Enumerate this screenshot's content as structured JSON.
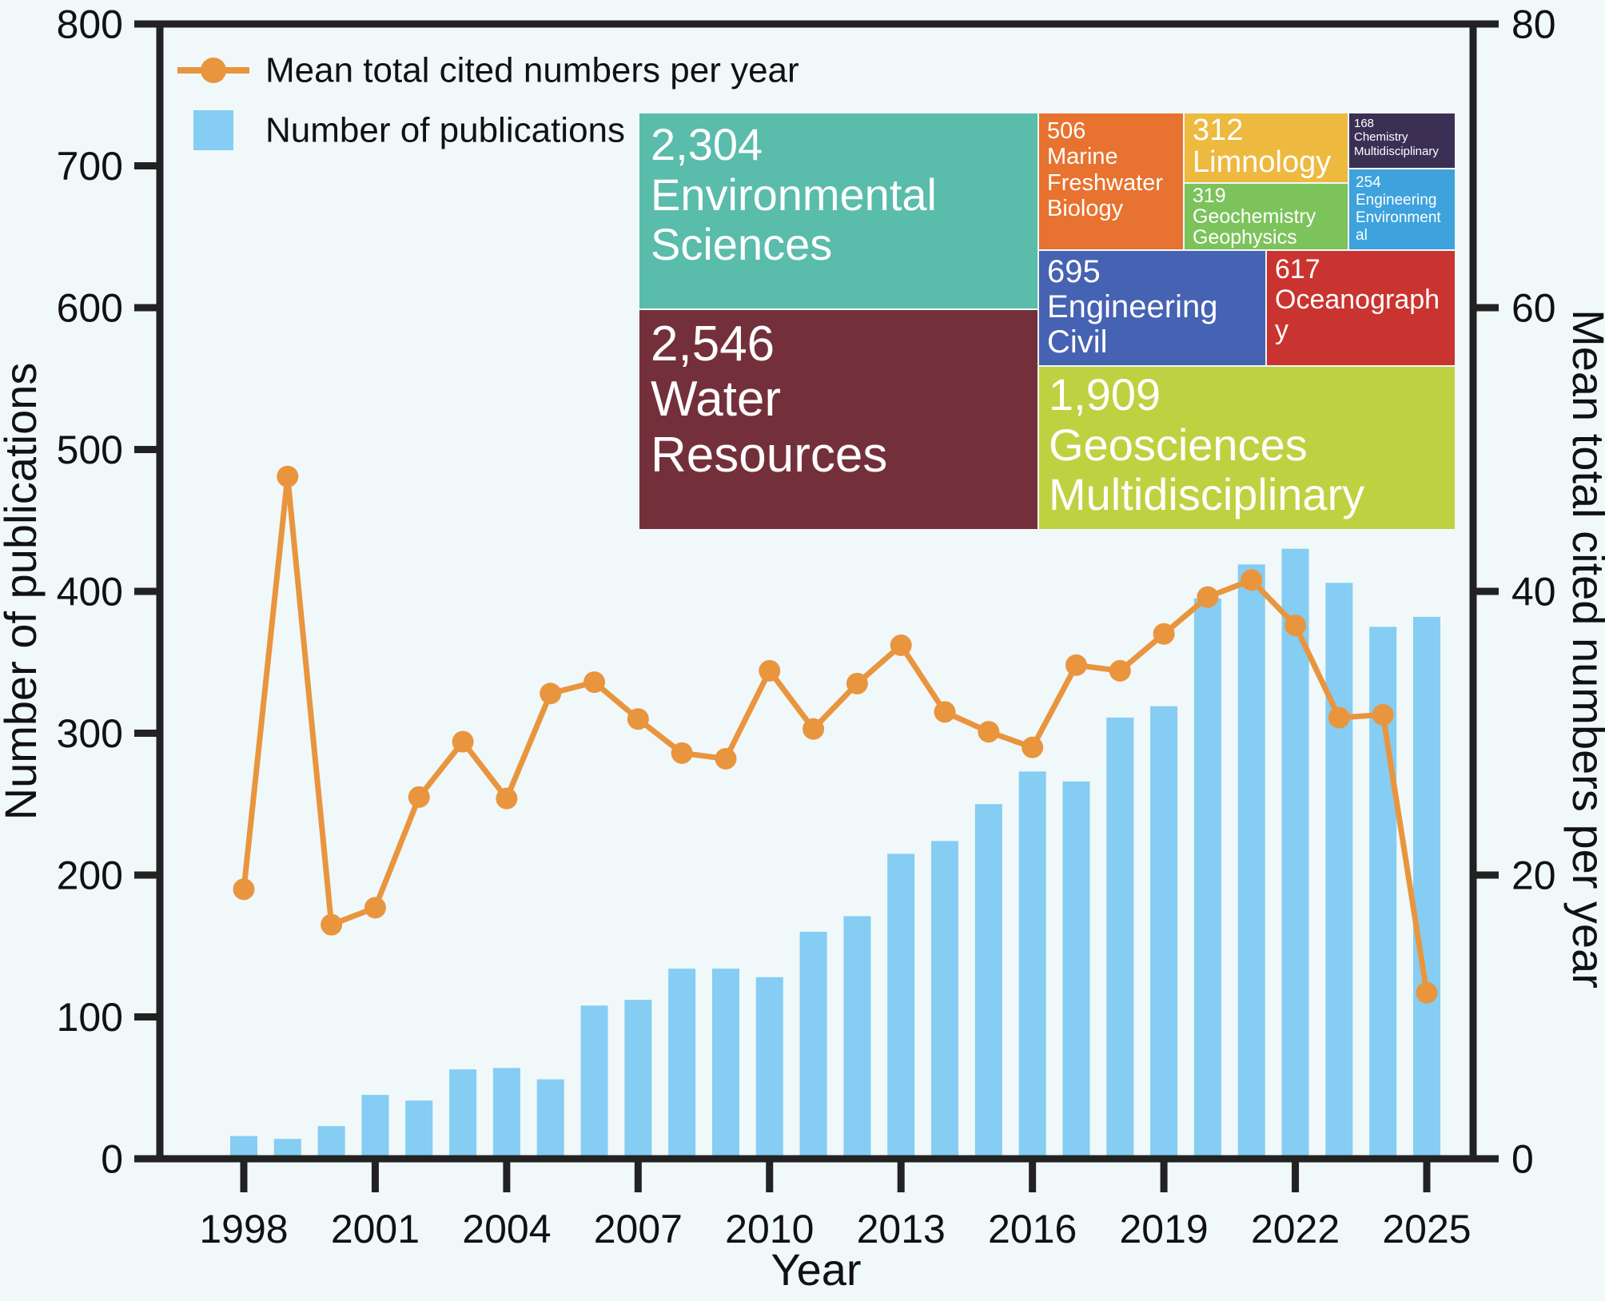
{
  "figure": {
    "background": "#f0f8fa",
    "frame_color": "#222222",
    "text_color": "#111111"
  },
  "legend": {
    "items": [
      {
        "label": "Mean total cited numbers per year",
        "marker": "line-dot",
        "color": "#e9953e"
      },
      {
        "label": "Number of publications",
        "marker": "square",
        "color": "#85cdf2"
      }
    ]
  },
  "chart_data": {
    "type": "bar+line",
    "title": "",
    "x": [
      1998,
      1999,
      2000,
      2001,
      2002,
      2003,
      2004,
      2005,
      2006,
      2007,
      2008,
      2009,
      2010,
      2011,
      2012,
      2013,
      2014,
      2015,
      2016,
      2017,
      2018,
      2019,
      2020,
      2021,
      2022,
      2023,
      2024,
      2025
    ],
    "series": [
      {
        "name": "Number of publications",
        "type": "bar",
        "yaxis": "left",
        "color": "#85cdf2",
        "values": [
          16,
          14,
          23,
          45,
          41,
          63,
          64,
          56,
          108,
          112,
          134,
          134,
          128,
          160,
          171,
          215,
          224,
          250,
          273,
          266,
          311,
          319,
          395,
          419,
          430,
          406,
          375,
          382
        ]
      },
      {
        "name": "Mean total cited numbers per year",
        "type": "line",
        "yaxis": "right",
        "color": "#e9953e",
        "values": [
          19.0,
          48.1,
          16.5,
          17.7,
          25.5,
          29.4,
          25.4,
          32.8,
          33.6,
          31.0,
          28.6,
          28.2,
          34.4,
          30.3,
          33.5,
          36.2,
          31.5,
          30.1,
          29.0,
          34.8,
          34.4,
          37.0,
          39.6,
          40.8,
          37.6,
          31.1,
          31.3,
          11.7
        ]
      }
    ],
    "axes": {
      "xlabel": "Year",
      "ylabel_left": "Number of publications",
      "ylabel_right": "Mean total cited numbers per year",
      "ylim_left": [
        0,
        800
      ],
      "ylim_right": [
        0,
        80
      ],
      "yticks_left": [
        "0",
        "100",
        "200",
        "300",
        "400",
        "500",
        "600",
        "700",
        "800"
      ],
      "yticks_right": [
        "0",
        "20",
        "40",
        "60",
        "80"
      ],
      "xticks": [
        "1998",
        "2001",
        "2004",
        "2007",
        "2010",
        "2013",
        "2016",
        "2019",
        "2022",
        "2025"
      ]
    },
    "grid": false,
    "legend_position": "top-left-inside"
  },
  "treemap": {
    "items": [
      {
        "id": "environmental-sciences",
        "value": "2,304",
        "label": "Environmental Sciences",
        "color": "#5abcab"
      },
      {
        "id": "water-resources",
        "value": "2,546",
        "label": "Water Resources",
        "color": "#74303a"
      },
      {
        "id": "marine-freshwater-biology",
        "value": "506",
        "label": "Marine Freshwater Biology",
        "color": "#e8722f"
      },
      {
        "id": "limnology",
        "value": "312",
        "label": "Limnology",
        "color": "#edb93f"
      },
      {
        "id": "geochemistry-geophysics",
        "value": "319",
        "label": "Geochemistry Geophysics",
        "color": "#7cc35b"
      },
      {
        "id": "chemistry-multidisciplinary",
        "value": "168",
        "label": "Chemistry Multidisciplinary",
        "color": "#3b3054"
      },
      {
        "id": "engineering-environmental",
        "value": "254",
        "label": "Engineering Environmental",
        "color": "#3ea2dd"
      },
      {
        "id": "engineering-civil",
        "value": "695",
        "label": "Engineering Civil",
        "color": "#4562b3"
      },
      {
        "id": "oceanography",
        "value": "617",
        "label": "Oceanography",
        "color": "#ca3430"
      },
      {
        "id": "geosciences-multidisciplinary",
        "value": "1,909",
        "label": "Geosciences Multidisciplinary",
        "color": "#bed141"
      }
    ]
  }
}
